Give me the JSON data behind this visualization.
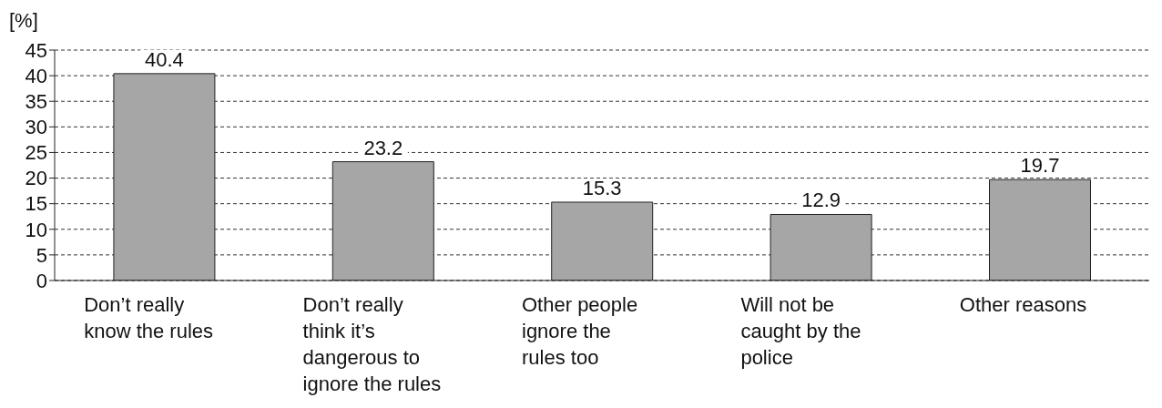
{
  "chart_data": {
    "type": "bar",
    "ylabel": "[%]",
    "categories": [
      "Don’t really\nknow the rules",
      "Don’t really\nthink it’s\ndangerous to\nignore the rules",
      "Other people\nignore the\nrules too",
      "Will not be\ncaught by the\npolice",
      "Other reasons"
    ],
    "values": [
      40.4,
      23.2,
      15.3,
      12.9,
      19.7
    ],
    "color": "#a6a6a6",
    "ylim": [
      0,
      45
    ],
    "yticks": [
      0,
      5,
      10,
      15,
      20,
      25,
      30,
      35,
      40,
      45
    ],
    "grid": "y",
    "data_labels": true
  }
}
